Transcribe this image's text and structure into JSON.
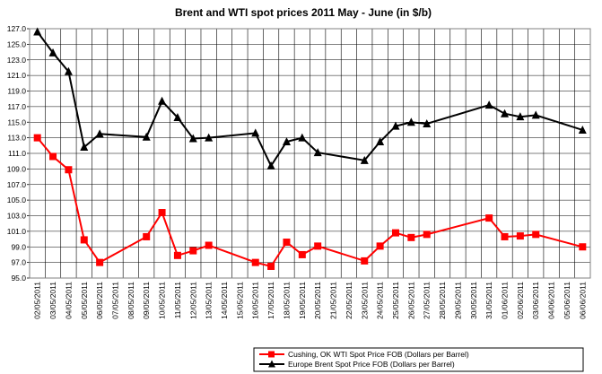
{
  "chart_data": {
    "type": "line",
    "title": "Brent and WTI spot prices 2011 May - June (in $/b)",
    "xlabel": "",
    "ylabel": "",
    "ylim": [
      95.0,
      127.0
    ],
    "ytick_step": 2,
    "ytick_labels": [
      "95.0",
      "97.0",
      "99.0",
      "101.0",
      "103.0",
      "105.0",
      "107.0",
      "109.0",
      "111.0",
      "113.0",
      "115.0",
      "117.0",
      "119.0",
      "121.0",
      "123.0",
      "125.0",
      "127.0"
    ],
    "grid": true,
    "legend_position": "bottom",
    "categories": [
      "02/05/2011",
      "03/05/2011",
      "04/05/2011",
      "05/05/2011",
      "06/05/2011",
      "07/05/2011",
      "08/05/2011",
      "09/05/2011",
      "10/05/2011",
      "11/05/2011",
      "12/05/2011",
      "13/05/2011",
      "14/05/2011",
      "15/05/2011",
      "16/05/2011",
      "17/05/2011",
      "18/05/2011",
      "19/05/2011",
      "20/05/2011",
      "21/05/2011",
      "22/05/2011",
      "23/05/2011",
      "24/05/2011",
      "25/05/2011",
      "26/05/2011",
      "27/05/2011",
      "28/05/2011",
      "29/05/2011",
      "30/05/2011",
      "31/05/2011",
      "01/06/2011",
      "02/06/2011",
      "03/06/2011",
      "04/06/2011",
      "05/06/2011",
      "06/06/2011"
    ],
    "series": [
      {
        "name": "Cushing, OK WTI Spot Price FOB (Dollars per Barrel)",
        "color": "#ff0000",
        "marker": "square",
        "points": [
          [
            "02/05/2011",
            113.0
          ],
          [
            "03/05/2011",
            110.6
          ],
          [
            "04/05/2011",
            108.9
          ],
          [
            "05/05/2011",
            99.9
          ],
          [
            "06/05/2011",
            97.0
          ],
          [
            "09/05/2011",
            100.3
          ],
          [
            "10/05/2011",
            103.4
          ],
          [
            "11/05/2011",
            97.9
          ],
          [
            "12/05/2011",
            98.5
          ],
          [
            "13/05/2011",
            99.2
          ],
          [
            "16/05/2011",
            97.0
          ],
          [
            "17/05/2011",
            96.5
          ],
          [
            "18/05/2011",
            99.6
          ],
          [
            "19/05/2011",
            98.0
          ],
          [
            "20/05/2011",
            99.1
          ],
          [
            "23/05/2011",
            97.2
          ],
          [
            "24/05/2011",
            99.1
          ],
          [
            "25/05/2011",
            100.8
          ],
          [
            "26/05/2011",
            100.2
          ],
          [
            "27/05/2011",
            100.6
          ],
          [
            "31/05/2011",
            102.7
          ],
          [
            "01/06/2011",
            100.3
          ],
          [
            "02/06/2011",
            100.4
          ],
          [
            "03/06/2011",
            100.6
          ],
          [
            "06/06/2011",
            99.0
          ]
        ]
      },
      {
        "name": "Europe Brent Spot Price FOB (Dollars per Barrel)",
        "color": "#000000",
        "marker": "triangle",
        "points": [
          [
            "02/05/2011",
            126.6
          ],
          [
            "03/05/2011",
            123.9
          ],
          [
            "04/05/2011",
            121.5
          ],
          [
            "05/05/2011",
            111.8
          ],
          [
            "06/05/2011",
            113.5
          ],
          [
            "09/05/2011",
            113.1
          ],
          [
            "10/05/2011",
            117.7
          ],
          [
            "11/05/2011",
            115.6
          ],
          [
            "12/05/2011",
            112.9
          ],
          [
            "13/05/2011",
            113.0
          ],
          [
            "16/05/2011",
            113.6
          ],
          [
            "17/05/2011",
            109.4
          ],
          [
            "18/05/2011",
            112.5
          ],
          [
            "19/05/2011",
            113.0
          ],
          [
            "20/05/2011",
            111.1
          ],
          [
            "23/05/2011",
            110.1
          ],
          [
            "24/05/2011",
            112.5
          ],
          [
            "25/05/2011",
            114.5
          ],
          [
            "26/05/2011",
            115.0
          ],
          [
            "27/05/2011",
            114.8
          ],
          [
            "31/05/2011",
            117.2
          ],
          [
            "01/06/2011",
            116.1
          ],
          [
            "02/06/2011",
            115.7
          ],
          [
            "03/06/2011",
            115.9
          ],
          [
            "06/06/2011",
            114.0
          ]
        ]
      }
    ]
  }
}
